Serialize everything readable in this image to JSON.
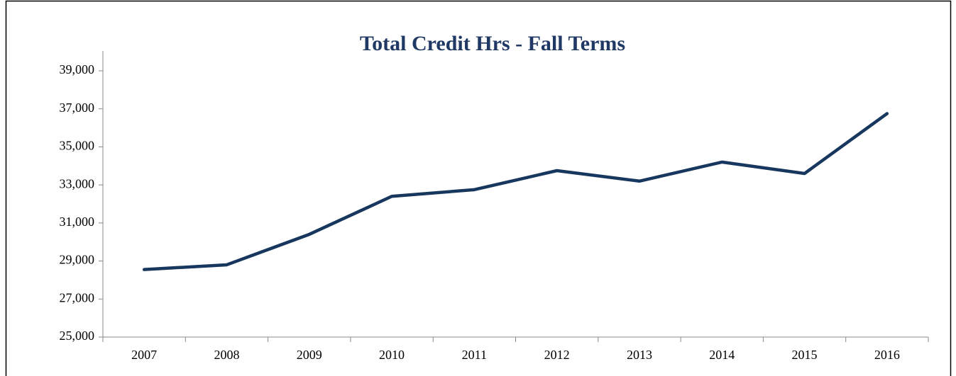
{
  "chart_data": {
    "type": "line",
    "title": "Total Credit Hrs - Fall Terms",
    "categories": [
      "2007",
      "2008",
      "2009",
      "2010",
      "2011",
      "2012",
      "2013",
      "2014",
      "2015",
      "2016"
    ],
    "series": [
      {
        "name": "Total Credit Hrs",
        "color": "#17375e",
        "values": [
          28550,
          28800,
          30400,
          32400,
          32750,
          33750,
          33200,
          34200,
          33600,
          36750
        ]
      }
    ],
    "ylim": [
      25000,
      39000
    ],
    "yticks": [
      {
        "value": 25000,
        "label": "25,000"
      },
      {
        "value": 27000,
        "label": "27,000"
      },
      {
        "value": 29000,
        "label": "29,000"
      },
      {
        "value": 31000,
        "label": "31,000"
      },
      {
        "value": 33000,
        "label": "33,000"
      },
      {
        "value": 35000,
        "label": "35,000"
      },
      {
        "value": 37000,
        "label": "37,000"
      },
      {
        "value": 39000,
        "label": "39,000"
      }
    ],
    "grid": false,
    "legend": false
  }
}
